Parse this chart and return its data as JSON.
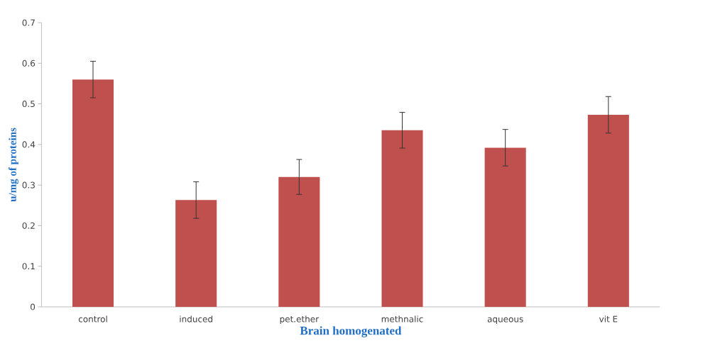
{
  "chart_data": {
    "type": "bar",
    "xlabel": "Brain homogenated",
    "ylabel": "u/mg of  proteins",
    "categories": [
      "control",
      "induced",
      "pet.ether",
      "methnalic",
      "aqueous",
      "vit E"
    ],
    "values": [
      0.56,
      0.263,
      0.32,
      0.435,
      0.392,
      0.473
    ],
    "errors": [
      0.045,
      0.045,
      0.043,
      0.044,
      0.045,
      0.045
    ],
    "color": "#c0504d",
    "ylim": [
      0,
      0.7
    ],
    "yticks": [
      0,
      0.1,
      0.2,
      0.3,
      0.4,
      0.5,
      0.6,
      0.7
    ],
    "grid": false
  }
}
